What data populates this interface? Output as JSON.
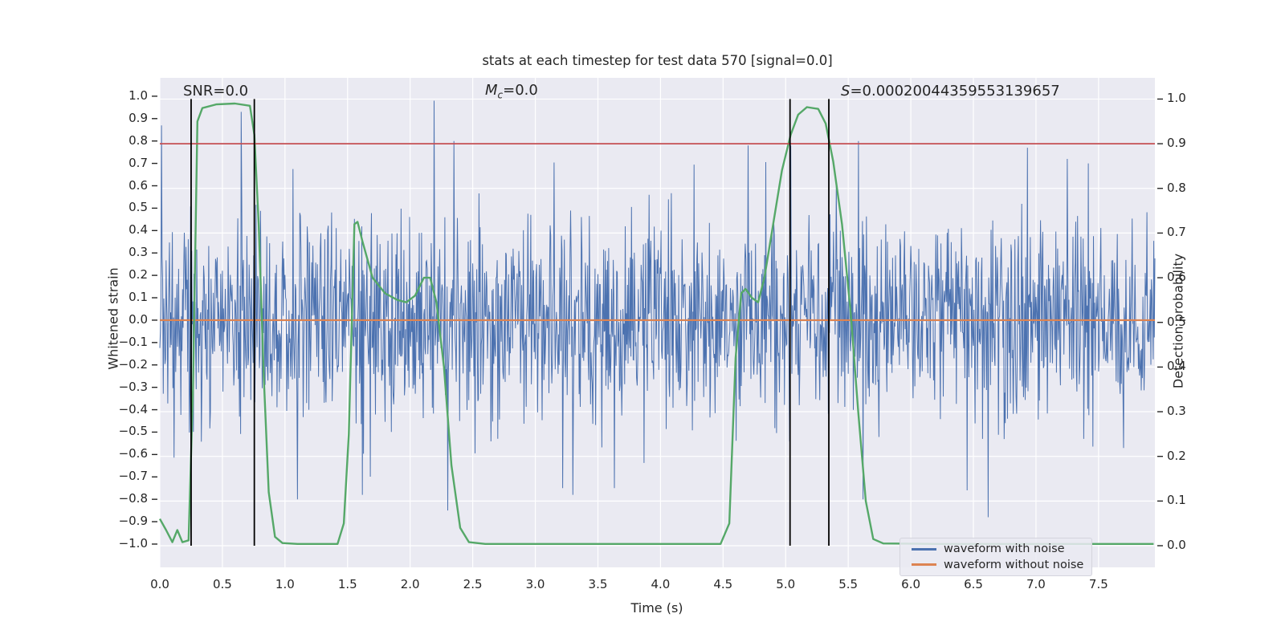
{
  "figure": {
    "kind": "matplotlib-figure"
  },
  "colors": {
    "noise_blue": "#4C72B0",
    "clean_orange": "#DD8452",
    "probability_green": "#55A868",
    "threshold_red": "#C44E52",
    "event_black": "#000000",
    "axes_background": "#EAEAF2",
    "grid": "#FFFFFF",
    "text": "#262626"
  },
  "chart_data": {
    "type": "line",
    "title": "stats at each timestep for test data 570 [signal=0.0]",
    "xlabel": "Time (s)",
    "ylabel_left": "Whitened strain",
    "ylabel_right": "Detection probability",
    "xlim": [
      0,
      7.95
    ],
    "ylim_left": [
      -1.104,
      1.082
    ],
    "ylim_right": [
      -0.0485,
      1.0475
    ],
    "xticks": [
      0.0,
      0.5,
      1.0,
      1.5,
      2.0,
      2.5,
      3.0,
      3.5,
      4.0,
      4.5,
      5.0,
      5.5,
      6.0,
      6.5,
      7.0,
      7.5
    ],
    "yticks_left": [
      1.0,
      0.9,
      0.8,
      0.7,
      0.6,
      0.5,
      0.4,
      0.3,
      0.2,
      0.1,
      0.0,
      -0.1,
      -0.2,
      -0.3,
      -0.4,
      -0.5,
      -0.6,
      -0.7,
      -0.8,
      -0.9,
      -1.0
    ],
    "yticks_right": [
      1.0,
      0.9,
      0.8,
      0.7,
      0.6,
      0.5,
      0.4,
      0.3,
      0.2,
      0.1,
      0.0
    ],
    "grid": true,
    "annotations": [
      {
        "text": "SNR=0.0"
      },
      {
        "symbol": "M",
        "subscript": "c",
        "rest": "=0.0"
      },
      {
        "symbol": "S",
        "rest": "=0.00020044359553139657"
      }
    ],
    "threshold_line": {
      "axis": "right",
      "value": 0.9
    },
    "event_vlines": {
      "axis": "right",
      "times": [
        0.25,
        0.755,
        5.035,
        5.345
      ],
      "span": [
        0.0,
        1.0
      ]
    },
    "series": [
      {
        "name": "waveform with noise",
        "axis": "left",
        "style": "gaussian-noise",
        "n": 1750,
        "sigma": 0.22,
        "seed": 20,
        "clip": 0.98,
        "spikes": [
          [
            0.012,
            0.87
          ],
          [
            0.25,
            -0.88
          ],
          [
            0.65,
            0.93
          ],
          [
            1.1,
            -0.8
          ],
          [
            1.62,
            -0.78
          ],
          [
            2.19,
            0.98
          ],
          [
            2.3,
            -0.85
          ],
          [
            2.35,
            0.8
          ],
          [
            3.22,
            -0.75
          ],
          [
            3.3,
            -0.78
          ],
          [
            4.7,
            0.78
          ],
          [
            5.04,
            0.78
          ],
          [
            5.58,
            0.8
          ],
          [
            5.62,
            -0.8
          ],
          [
            6.45,
            -0.76
          ],
          [
            6.62,
            -0.88
          ],
          [
            6.93,
            0.77
          ],
          [
            7.25,
            0.72
          ],
          [
            7.42,
            0.7
          ]
        ]
      },
      {
        "name": "waveform without noise",
        "axis": "left",
        "style": "constant",
        "value": 0.0
      },
      {
        "name": "detection probability",
        "axis": "right",
        "style": "points",
        "points": [
          [
            0.0,
            0.06
          ],
          [
            0.05,
            0.035
          ],
          [
            0.1,
            0.008
          ],
          [
            0.14,
            0.035
          ],
          [
            0.18,
            0.008
          ],
          [
            0.23,
            0.012
          ],
          [
            0.265,
            0.35
          ],
          [
            0.3,
            0.95
          ],
          [
            0.34,
            0.98
          ],
          [
            0.45,
            0.988
          ],
          [
            0.6,
            0.99
          ],
          [
            0.72,
            0.985
          ],
          [
            0.755,
            0.92
          ],
          [
            0.79,
            0.72
          ],
          [
            0.83,
            0.38
          ],
          [
            0.87,
            0.12
          ],
          [
            0.92,
            0.02
          ],
          [
            0.98,
            0.006
          ],
          [
            1.1,
            0.004
          ],
          [
            1.42,
            0.004
          ],
          [
            1.47,
            0.05
          ],
          [
            1.51,
            0.25
          ],
          [
            1.555,
            0.72
          ],
          [
            1.58,
            0.725
          ],
          [
            1.62,
            0.68
          ],
          [
            1.7,
            0.6
          ],
          [
            1.8,
            0.565
          ],
          [
            1.9,
            0.55
          ],
          [
            1.97,
            0.545
          ],
          [
            2.04,
            0.56
          ],
          [
            2.11,
            0.6
          ],
          [
            2.16,
            0.6
          ],
          [
            2.21,
            0.545
          ],
          [
            2.27,
            0.4
          ],
          [
            2.33,
            0.18
          ],
          [
            2.4,
            0.04
          ],
          [
            2.47,
            0.008
          ],
          [
            2.6,
            0.004
          ],
          [
            3.5,
            0.004
          ],
          [
            4.48,
            0.004
          ],
          [
            4.55,
            0.05
          ],
          [
            4.6,
            0.42
          ],
          [
            4.645,
            0.565
          ],
          [
            4.68,
            0.575
          ],
          [
            4.73,
            0.555
          ],
          [
            4.78,
            0.545
          ],
          [
            4.83,
            0.6
          ],
          [
            4.9,
            0.72
          ],
          [
            4.97,
            0.84
          ],
          [
            5.04,
            0.92
          ],
          [
            5.1,
            0.965
          ],
          [
            5.17,
            0.982
          ],
          [
            5.26,
            0.978
          ],
          [
            5.32,
            0.945
          ],
          [
            5.38,
            0.86
          ],
          [
            5.45,
            0.72
          ],
          [
            5.52,
            0.52
          ],
          [
            5.58,
            0.3
          ],
          [
            5.64,
            0.1
          ],
          [
            5.7,
            0.015
          ],
          [
            5.78,
            0.005
          ],
          [
            6.2,
            0.004
          ],
          [
            7.0,
            0.004
          ],
          [
            7.94,
            0.004
          ]
        ]
      }
    ],
    "legend": {
      "position": "lower right",
      "entries": [
        {
          "label": "waveform with noise"
        },
        {
          "label": "waveform without noise"
        }
      ]
    }
  }
}
